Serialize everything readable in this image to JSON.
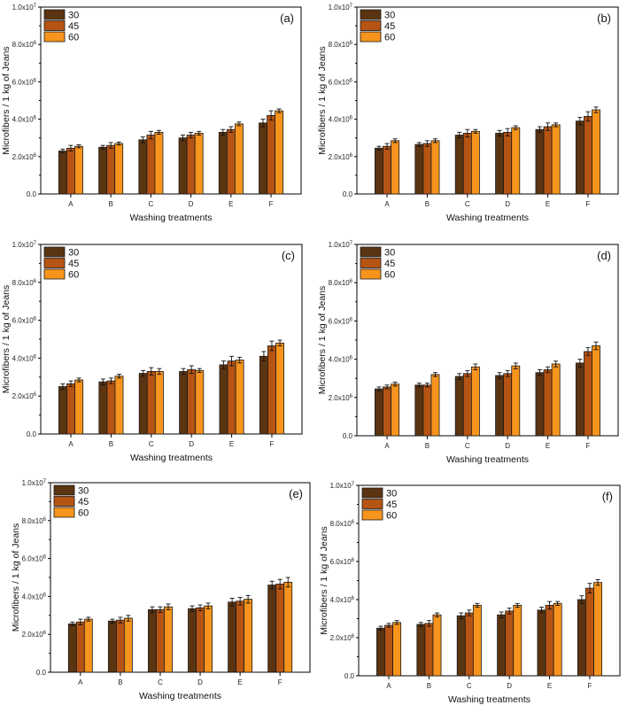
{
  "colors": {
    "30": "#5b3411",
    "45": "#b65414",
    "60": "#f7941d"
  },
  "chart_data": [
    {
      "panel": "(a)",
      "type": "bar",
      "categories": [
        "A",
        "B",
        "C",
        "D",
        "E",
        "F"
      ],
      "xlabel": "Washing treatments",
      "ylabel": "Microfibers / 1 kg of Jeans",
      "ylim": [
        0,
        10000000
      ],
      "yticks": [
        {
          "value": 0,
          "label": "0.0"
        },
        {
          "value": 2000000,
          "base": "2.0x10",
          "exp": "6"
        },
        {
          "value": 4000000,
          "base": "4.0x10",
          "exp": "6"
        },
        {
          "value": 6000000,
          "base": "6.0x10",
          "exp": "6"
        },
        {
          "value": 8000000,
          "base": "8.0x10",
          "exp": "6"
        },
        {
          "value": 10000000,
          "base": "1.0x10",
          "exp": "7"
        }
      ],
      "legend_position": "top-left",
      "series": [
        {
          "name": "30",
          "values": [
            2300000,
            2500000,
            2900000,
            3000000,
            3300000,
            3800000
          ],
          "errors": [
            100000,
            100000,
            150000,
            150000,
            150000,
            200000
          ]
        },
        {
          "name": "45",
          "values": [
            2450000,
            2600000,
            3150000,
            3150000,
            3450000,
            4200000
          ],
          "errors": [
            150000,
            150000,
            200000,
            150000,
            150000,
            250000
          ]
        },
        {
          "name": "60",
          "values": [
            2550000,
            2700000,
            3300000,
            3250000,
            3750000,
            4450000
          ],
          "errors": [
            80000,
            80000,
            100000,
            100000,
            100000,
            100000
          ]
        }
      ]
    },
    {
      "panel": "(b)",
      "type": "bar",
      "categories": [
        "A",
        "B",
        "C",
        "D",
        "E",
        "F"
      ],
      "xlabel": "Washing treatments",
      "ylabel": "Microfibers / 1 kg of Jeans",
      "ylim": [
        0,
        10000000
      ],
      "yticks": [
        {
          "value": 0,
          "label": "0.0"
        },
        {
          "value": 2000000,
          "base": "2.0x10",
          "exp": "6"
        },
        {
          "value": 4000000,
          "base": "4.0x10",
          "exp": "6"
        },
        {
          "value": 6000000,
          "base": "6.0x10",
          "exp": "6"
        },
        {
          "value": 8000000,
          "base": "8.0x10",
          "exp": "6"
        },
        {
          "value": 10000000,
          "base": "1.0x10",
          "exp": "7"
        }
      ],
      "legend_position": "top-left",
      "series": [
        {
          "name": "30",
          "values": [
            2450000,
            2650000,
            3150000,
            3250000,
            3450000,
            3900000
          ],
          "errors": [
            100000,
            100000,
            150000,
            150000,
            150000,
            200000
          ]
        },
        {
          "name": "45",
          "values": [
            2550000,
            2700000,
            3250000,
            3300000,
            3600000,
            4150000
          ],
          "errors": [
            150000,
            150000,
            200000,
            200000,
            200000,
            250000
          ]
        },
        {
          "name": "60",
          "values": [
            2850000,
            2850000,
            3350000,
            3550000,
            3700000,
            4500000
          ],
          "errors": [
            100000,
            100000,
            100000,
            100000,
            100000,
            150000
          ]
        }
      ]
    },
    {
      "panel": "(c)",
      "type": "bar",
      "categories": [
        "A",
        "B",
        "C",
        "D",
        "E",
        "F"
      ],
      "xlabel": "Washing treatments",
      "ylabel": "Microfibers / 1 kg of Jeans",
      "ylim": [
        0,
        10000000
      ],
      "yticks": [
        {
          "value": 0,
          "label": "0.0"
        },
        {
          "value": 2000000,
          "base": "2.0x10",
          "exp": "6"
        },
        {
          "value": 4000000,
          "base": "4.0x10",
          "exp": "6"
        },
        {
          "value": 6000000,
          "base": "6.0x10",
          "exp": "6"
        },
        {
          "value": 8000000,
          "base": "8.0x10",
          "exp": "6"
        },
        {
          "value": 10000000,
          "base": "1.0x10",
          "exp": "7"
        }
      ],
      "legend_position": "top-left",
      "series": [
        {
          "name": "30",
          "values": [
            2500000,
            2750000,
            3200000,
            3300000,
            3650000,
            4100000
          ],
          "errors": [
            150000,
            150000,
            150000,
            150000,
            200000,
            250000
          ]
        },
        {
          "name": "45",
          "values": [
            2650000,
            2800000,
            3300000,
            3400000,
            3850000,
            4650000
          ],
          "errors": [
            150000,
            150000,
            200000,
            200000,
            250000,
            250000
          ]
        },
        {
          "name": "60",
          "values": [
            2850000,
            3050000,
            3300000,
            3350000,
            3900000,
            4800000
          ],
          "errors": [
            100000,
            100000,
            150000,
            100000,
            150000,
            150000
          ]
        }
      ]
    },
    {
      "panel": "(d)",
      "type": "bar",
      "categories": [
        "A",
        "B",
        "C",
        "D",
        "E",
        "F"
      ],
      "xlabel": "Washing treatments",
      "ylabel": "Microfibers / 1 kg of Jeans",
      "ylim": [
        0,
        10000000
      ],
      "yticks": [
        {
          "value": 0,
          "label": "0.0"
        },
        {
          "value": 2000000,
          "base": "2.0x10",
          "exp": "6"
        },
        {
          "value": 4000000,
          "base": "4.0x10",
          "exp": "6"
        },
        {
          "value": 6000000,
          "base": "6.0x10",
          "exp": "6"
        },
        {
          "value": 8000000,
          "base": "8.0x10",
          "exp": "6"
        },
        {
          "value": 10000000,
          "base": "1.0x10",
          "exp": "7"
        }
      ],
      "legend_position": "top-left",
      "series": [
        {
          "name": "30",
          "values": [
            2450000,
            2650000,
            3100000,
            3150000,
            3300000,
            3800000
          ],
          "errors": [
            100000,
            100000,
            150000,
            150000,
            150000,
            200000
          ]
        },
        {
          "name": "45",
          "values": [
            2550000,
            2650000,
            3250000,
            3250000,
            3450000,
            4400000
          ],
          "errors": [
            100000,
            100000,
            150000,
            150000,
            150000,
            200000
          ]
        },
        {
          "name": "60",
          "values": [
            2700000,
            3200000,
            3600000,
            3650000,
            3750000,
            4700000
          ],
          "errors": [
            100000,
            100000,
            150000,
            150000,
            150000,
            200000
          ]
        }
      ]
    },
    {
      "panel": "(e)",
      "type": "bar",
      "categories": [
        "A",
        "B",
        "C",
        "D",
        "E",
        "F"
      ],
      "xlabel": "Washing treatments",
      "ylabel": "Microfibers / 1 kg of Jeans",
      "ylim": [
        0,
        10000000
      ],
      "yticks": [
        {
          "value": 0,
          "label": "0.0"
        },
        {
          "value": 2000000,
          "base": "2.0x10",
          "exp": "6"
        },
        {
          "value": 4000000,
          "base": "4.0x10",
          "exp": "6"
        },
        {
          "value": 6000000,
          "base": "6.0x10",
          "exp": "6"
        },
        {
          "value": 8000000,
          "base": "8.0x10",
          "exp": "6"
        },
        {
          "value": 10000000,
          "base": "1.0x10",
          "exp": "7"
        }
      ],
      "legend_position": "top-left",
      "series": [
        {
          "name": "30",
          "values": [
            2550000,
            2700000,
            3300000,
            3350000,
            3700000,
            4600000
          ],
          "errors": [
            100000,
            100000,
            150000,
            150000,
            200000,
            200000
          ]
        },
        {
          "name": "45",
          "values": [
            2650000,
            2750000,
            3300000,
            3400000,
            3750000,
            4650000
          ],
          "errors": [
            150000,
            150000,
            150000,
            150000,
            200000,
            250000
          ]
        },
        {
          "name": "60",
          "values": [
            2800000,
            2850000,
            3450000,
            3500000,
            3850000,
            4750000
          ],
          "errors": [
            100000,
            150000,
            150000,
            150000,
            200000,
            250000
          ]
        }
      ]
    },
    {
      "panel": "(f)",
      "type": "bar",
      "categories": [
        "A",
        "B",
        "C",
        "D",
        "E",
        "F"
      ],
      "xlabel": "Washing treatments",
      "ylabel": "Microfibers / 1 kg of Jeans",
      "ylim": [
        0,
        10000000
      ],
      "yticks": [
        {
          "value": 0,
          "label": "0.0"
        },
        {
          "value": 2000000,
          "base": "2.0x10",
          "exp": "6"
        },
        {
          "value": 4000000,
          "base": "4.0x10",
          "exp": "6"
        },
        {
          "value": 6000000,
          "base": "6.0x10",
          "exp": "6"
        },
        {
          "value": 8000000,
          "base": "8.0x10",
          "exp": "6"
        },
        {
          "value": 10000000,
          "base": "1.0x10",
          "exp": "7"
        }
      ],
      "legend_position": "top-left",
      "series": [
        {
          "name": "30",
          "values": [
            2500000,
            2700000,
            3150000,
            3200000,
            3450000,
            4000000
          ],
          "errors": [
            100000,
            100000,
            150000,
            150000,
            150000,
            200000
          ]
        },
        {
          "name": "45",
          "values": [
            2650000,
            2750000,
            3300000,
            3400000,
            3700000,
            4600000
          ],
          "errors": [
            100000,
            150000,
            150000,
            150000,
            200000,
            250000
          ]
        },
        {
          "name": "60",
          "values": [
            2800000,
            3200000,
            3700000,
            3700000,
            3800000,
            4900000
          ],
          "errors": [
            100000,
            100000,
            100000,
            100000,
            100000,
            150000
          ]
        }
      ]
    }
  ]
}
